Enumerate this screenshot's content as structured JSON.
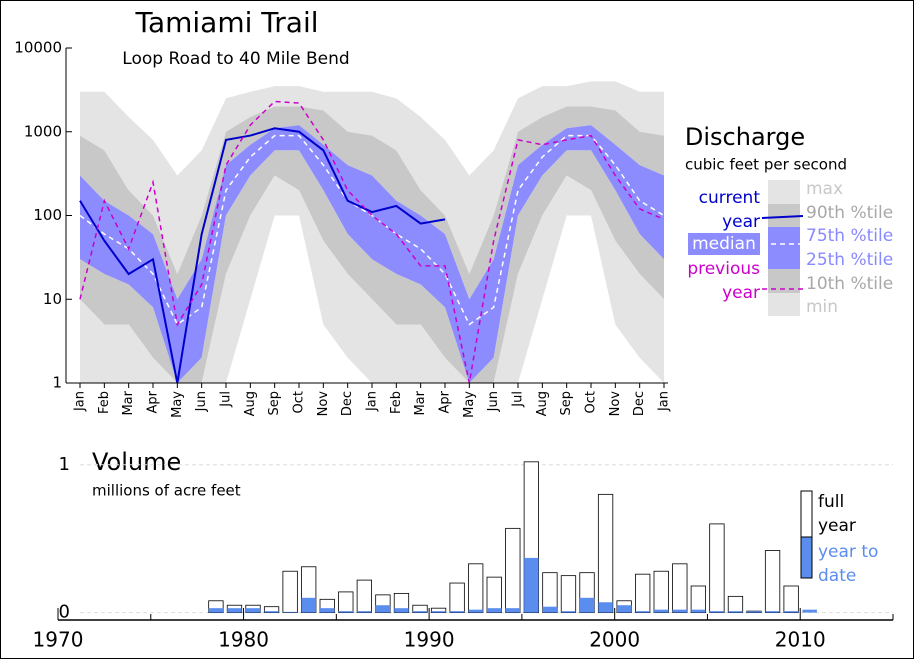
{
  "chart_data": [
    {
      "type": "band",
      "title": "Tamiami Trail",
      "subtitle": "Loop Road to 40 Mile Bend",
      "legend_title": "Discharge",
      "legend_subtitle": "cubic feet per second",
      "categories": [
        "Jan",
        "Feb",
        "Mar",
        "Apr",
        "May",
        "Jun",
        "Jul",
        "Aug",
        "Sep",
        "Oct",
        "Nov",
        "Dec",
        "Jan",
        "Feb",
        "Mar",
        "Apr",
        "May",
        "Jun",
        "Jul",
        "Aug",
        "Sep",
        "Oct",
        "Nov",
        "Dec",
        "Jan"
      ],
      "ylim": [
        1,
        10000
      ],
      "yticks": [
        1,
        10,
        100,
        1000,
        10000
      ],
      "log_scale": true,
      "series": [
        {
          "name": "max",
          "style": "band",
          "color": "#e4e4e4",
          "values": [
            3000,
            3000,
            1500,
            800,
            300,
            600,
            2500,
            3000,
            3500,
            3500,
            3000,
            3000,
            3000,
            2500,
            1500,
            800,
            300,
            600,
            2500,
            3500,
            3500,
            4000,
            4000,
            3000,
            3000
          ]
        },
        {
          "name": "90th %tile",
          "style": "band",
          "color": "#c8c8c8",
          "values": [
            900,
            600,
            200,
            100,
            20,
            100,
            1000,
            1500,
            2000,
            2000,
            1800,
            1000,
            900,
            600,
            200,
            100,
            20,
            100,
            1000,
            1500,
            2000,
            2000,
            1800,
            1000,
            900
          ]
        },
        {
          "name": "75th %tile",
          "style": "band",
          "color": "#8c8cff",
          "values": [
            300,
            150,
            100,
            60,
            10,
            30,
            400,
            700,
            1100,
            1200,
            700,
            400,
            300,
            150,
            100,
            60,
            10,
            30,
            400,
            700,
            1100,
            1200,
            700,
            400,
            300
          ]
        },
        {
          "name": "median",
          "style": "dashed",
          "color": "#ffffff",
          "values": [
            100,
            60,
            40,
            20,
            5,
            8,
            200,
            500,
            900,
            900,
            400,
            150,
            100,
            60,
            40,
            20,
            5,
            8,
            200,
            500,
            900,
            900,
            400,
            150,
            100
          ]
        },
        {
          "name": "25th %tile",
          "style": "band",
          "color": "#c8c8c8",
          "values": [
            30,
            20,
            15,
            8,
            1,
            2,
            100,
            300,
            600,
            600,
            200,
            60,
            30,
            20,
            15,
            8,
            1,
            2,
            100,
            300,
            600,
            600,
            200,
            60,
            30
          ]
        },
        {
          "name": "10th %tile",
          "style": "band",
          "color": "#e4e4e4",
          "values": [
            10,
            5,
            5,
            2,
            1,
            1,
            20,
            100,
            300,
            200,
            50,
            20,
            10,
            5,
            5,
            2,
            1,
            1,
            20,
            100,
            300,
            200,
            50,
            20,
            10
          ]
        },
        {
          "name": "min",
          "style": "band",
          "values": [
            1,
            1,
            1,
            1,
            1,
            1,
            1,
            10,
            100,
            100,
            5,
            2,
            1,
            1,
            1,
            1,
            1,
            1,
            1,
            10,
            100,
            100,
            5,
            2,
            1
          ]
        },
        {
          "name": "current year",
          "style": "line",
          "color": "#0000cc",
          "values": [
            150,
            50,
            20,
            30,
            1,
            60,
            800,
            900,
            1100,
            1000,
            600,
            150,
            110,
            130,
            80,
            90,
            null,
            null,
            null,
            null,
            null,
            null,
            null,
            null,
            null
          ]
        },
        {
          "name": "previous year",
          "style": "dashed",
          "color": "#cc00cc",
          "values": [
            10,
            150,
            40,
            250,
            5,
            15,
            400,
            1200,
            2300,
            2200,
            800,
            200,
            100,
            60,
            25,
            25,
            1,
            50,
            800,
            700,
            800,
            900,
            300,
            120,
            90
          ]
        }
      ]
    },
    {
      "type": "bar",
      "title": "Volume",
      "subtitle": "millions of acre feet",
      "x": [
        1978,
        1979,
        1980,
        1981,
        1982,
        1983,
        1984,
        1985,
        1986,
        1987,
        1988,
        1989,
        1990,
        1991,
        1992,
        1993,
        1994,
        1995,
        1996,
        1997,
        1998,
        1999,
        2000,
        2001,
        2002,
        2003,
        2004,
        2005,
        2006,
        2007,
        2008,
        2009,
        2010
      ],
      "series": [
        {
          "name": "full year",
          "color": "#ffffff",
          "values": [
            0.08,
            0.05,
            0.05,
            0.04,
            0.28,
            0.31,
            0.09,
            0.14,
            0.22,
            0.12,
            0.13,
            0.05,
            0.03,
            0.2,
            0.33,
            0.24,
            0.57,
            1.02,
            0.27,
            0.25,
            0.27,
            0.8,
            0.08,
            0.26,
            0.28,
            0.33,
            0.18,
            0.6,
            0.11,
            0.01,
            0.42,
            0.18,
            null
          ]
        },
        {
          "name": "year to date",
          "color": "#5b8def",
          "values": [
            0.03,
            0.03,
            0.03,
            0.01,
            0.005,
            0.1,
            0.03,
            0.01,
            0.01,
            0.05,
            0.03,
            0.01,
            0.01,
            0.01,
            0.02,
            0.03,
            0.03,
            0.37,
            0.04,
            0.01,
            0.1,
            0.07,
            0.05,
            0.01,
            0.02,
            0.02,
            0.02,
            0.01,
            0.01,
            0.01,
            0.01,
            0.01,
            0.02
          ]
        }
      ],
      "xlim": [
        1970,
        2015
      ],
      "xticks": [
        1970,
        1980,
        1990,
        2000,
        2010
      ],
      "xminorticks": [
        1975,
        1985,
        1995,
        2005,
        2015
      ],
      "ylim": [
        -0.05,
        1.1
      ],
      "yticks": [
        0,
        1
      ],
      "grid": true
    }
  ]
}
